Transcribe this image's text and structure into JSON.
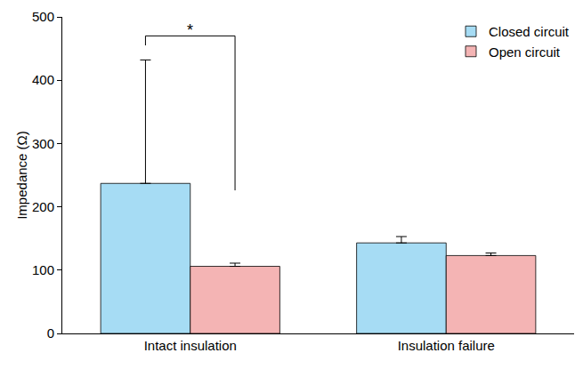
{
  "chart_data": {
    "type": "bar",
    "categories": [
      "Intact insulation",
      "Insulation failure"
    ],
    "series": [
      {
        "name": "Closed circuit",
        "color": "#a6dcf4",
        "values": [
          237,
          143
        ],
        "error": [
          195,
          10
        ]
      },
      {
        "name": "Open circuit",
        "color": "#f4b4b4",
        "values": [
          106,
          123
        ],
        "error": [
          5,
          4
        ]
      }
    ],
    "y_label": "Impedance (Ω)",
    "ylim": [
      0,
      500
    ],
    "yticks": [
      0,
      100,
      200,
      300,
      400,
      500
    ],
    "grid": false,
    "legend": "top right",
    "annotations": [
      {
        "text": "*",
        "category": "Intact insulation"
      }
    ]
  }
}
